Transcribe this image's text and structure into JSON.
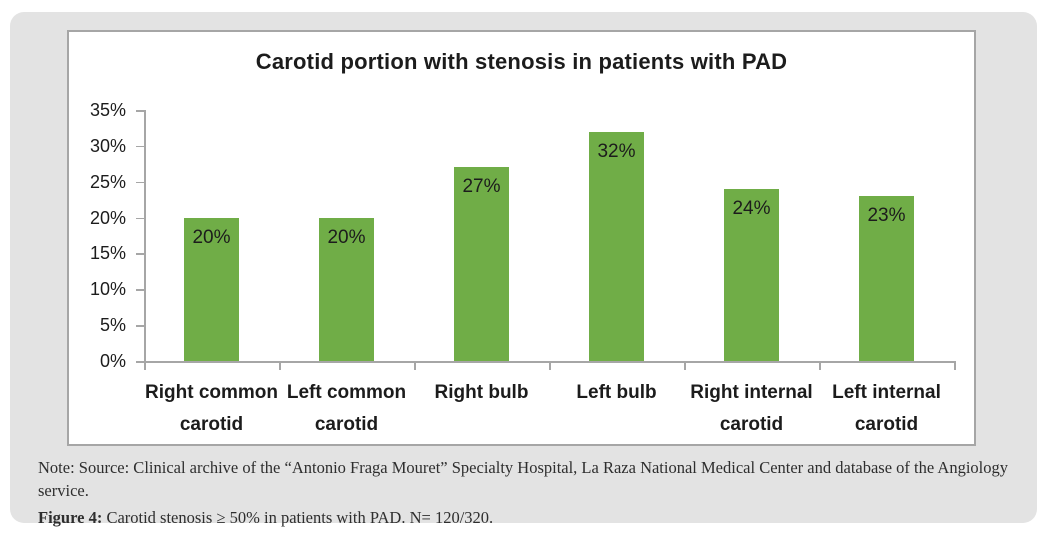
{
  "figure": {
    "note_lines": [
      "Note: Source: Clinical archive of the “Antonio Fraga Mouret” Specialty Hospital, La Raza National Medical Center and database of the Angiology",
      "service."
    ],
    "caption_label": "Figure 4:",
    "caption_text": " Carotid stenosis ≥ 50% in patients with PAD. N= 120/320."
  },
  "chart_data": {
    "type": "bar",
    "title": "Carotid portion with stenosis in patients with PAD",
    "categories": [
      "Right common carotid",
      "Left common carotid",
      "Right bulb",
      "Left bulb",
      "Right internal carotid",
      "Left internal carotid"
    ],
    "values": [
      20,
      20,
      27,
      32,
      24,
      23
    ],
    "data_labels": [
      "20%",
      "20%",
      "27%",
      "32%",
      "24%",
      "23%"
    ],
    "y_ticks": [
      "0%",
      "5%",
      "10%",
      "15%",
      "20%",
      "25%",
      "30%",
      "35%"
    ],
    "y_tick_step": 5,
    "ylim": [
      0,
      35
    ],
    "xlabel": "",
    "ylabel": "",
    "grid": false,
    "legend": null,
    "bar_color": "#70ad47",
    "axis_color": "#a6a6a6",
    "text_color": "#1c1c1c",
    "panel_color": "#e3e3e3"
  }
}
